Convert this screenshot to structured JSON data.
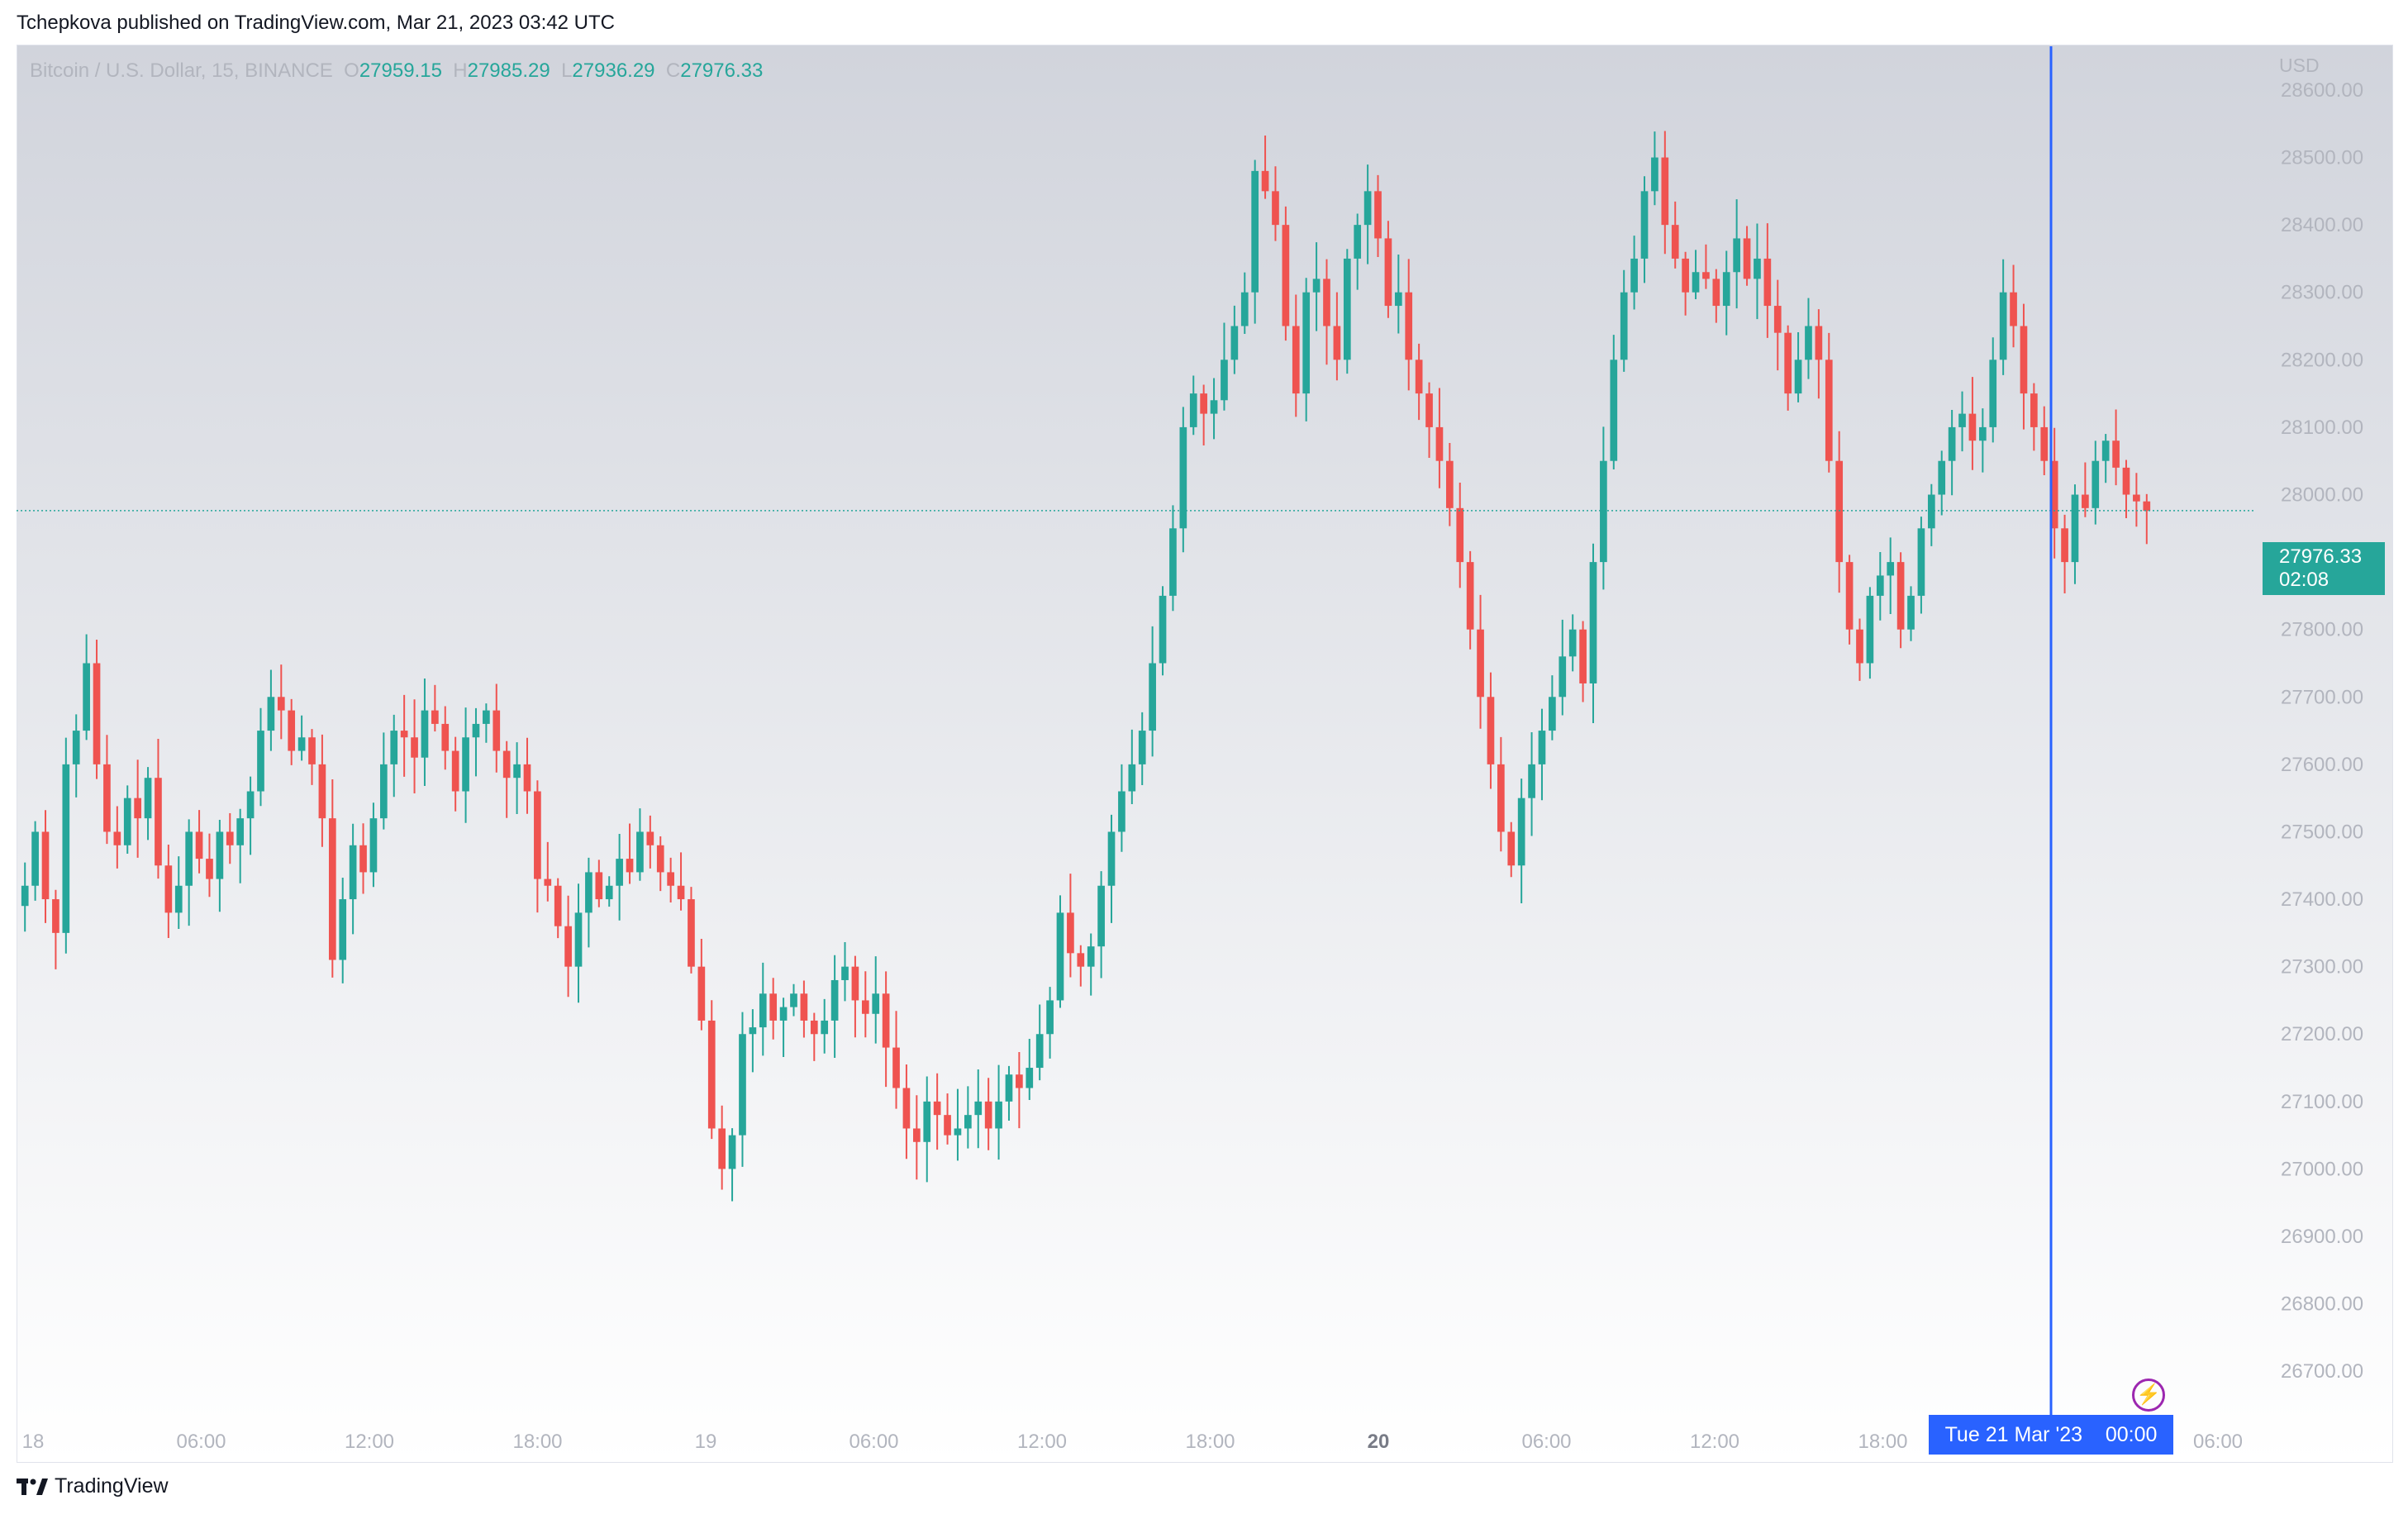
{
  "header": {
    "published_text": "Tchepkova published on TradingView.com, Mar 21, 2023 03:42 UTC"
  },
  "legend": {
    "symbol": "Bitcoin / U.S. Dollar, 15, BINANCE",
    "o_label": "O",
    "o_value": "27959.15",
    "h_label": "H",
    "h_value": "27985.29",
    "l_label": "L",
    "l_value": "27936.29",
    "c_label": "C",
    "c_value": "27976.33"
  },
  "axis": {
    "currency": "USD"
  },
  "last_price": {
    "price": "27976.33",
    "countdown": "02:08"
  },
  "crosshair": {
    "date_label": "Tue 21 Mar '23",
    "time_label": "00:00"
  },
  "footer": {
    "brand": "TradingView"
  },
  "colors": {
    "up": "#26a69a",
    "down": "#ef5350",
    "crosshair": "#2962ff",
    "last_price": "#26a69a"
  },
  "chart_data": {
    "type": "candlestick",
    "interval": "15",
    "ylim": [
      26650,
      28660
    ],
    "y_ticks": [
      "26700.00",
      "26800.00",
      "26900.00",
      "27000.00",
      "27100.00",
      "27200.00",
      "27300.00",
      "27400.00",
      "27500.00",
      "27600.00",
      "27700.00",
      "27800.00",
      "27900.00",
      "28000.00",
      "28100.00",
      "28200.00",
      "28300.00",
      "28400.00",
      "28500.00",
      "28600.00"
    ],
    "x_ticks": [
      "18",
      "06:00",
      "12:00",
      "18:00",
      "19",
      "06:00",
      "12:00",
      "18:00",
      "20",
      "06:00",
      "12:00",
      "18:00",
      "06:00"
    ],
    "closes": [
      27420,
      27500,
      27400,
      27350,
      27600,
      27650,
      27750,
      27600,
      27500,
      27480,
      27550,
      27520,
      27580,
      27450,
      27380,
      27420,
      27500,
      27460,
      27430,
      27500,
      27480,
      27520,
      27560,
      27650,
      27700,
      27680,
      27620,
      27640,
      27600,
      27520,
      27310,
      27400,
      27480,
      27440,
      27520,
      27600,
      27650,
      27640,
      27610,
      27680,
      27660,
      27620,
      27560,
      27640,
      27660,
      27680,
      27620,
      27580,
      27600,
      27560,
      27430,
      27420,
      27360,
      27300,
      27380,
      27440,
      27400,
      27420,
      27460,
      27440,
      27500,
      27480,
      27440,
      27420,
      27400,
      27300,
      27220,
      27060,
      27000,
      27050,
      27200,
      27210,
      27260,
      27220,
      27240,
      27260,
      27220,
      27200,
      27220,
      27280,
      27300,
      27250,
      27230,
      27260,
      27180,
      27120,
      27060,
      27040,
      27100,
      27080,
      27050,
      27060,
      27080,
      27100,
      27060,
      27100,
      27140,
      27120,
      27150,
      27200,
      27250,
      27380,
      27320,
      27300,
      27330,
      27420,
      27500,
      27560,
      27600,
      27650,
      27750,
      27850,
      27950,
      28100,
      28150,
      28120,
      28140,
      28200,
      28250,
      28300,
      28480,
      28450,
      28400,
      28250,
      28150,
      28300,
      28320,
      28250,
      28200,
      28350,
      28400,
      28450,
      28380,
      28280,
      28300,
      28200,
      28150,
      28100,
      28050,
      27980,
      27900,
      27800,
      27700,
      27600,
      27500,
      27450,
      27550,
      27600,
      27650,
      27700,
      27760,
      27800,
      27720,
      27900,
      28050,
      28200,
      28300,
      28350,
      28450,
      28500,
      28400,
      28350,
      28300,
      28330,
      28320,
      28280,
      28330,
      28380,
      28320,
      28350,
      28280,
      28240,
      28150,
      28200,
      28250,
      28200,
      28050,
      27900,
      27800,
      27750,
      27850,
      27880,
      27900,
      27800,
      27850,
      27950,
      28000,
      28050,
      28100,
      28120,
      28080,
      28100,
      28200,
      28300,
      28250,
      28150,
      28100,
      28050,
      27950,
      27900,
      28000,
      27980,
      28050,
      28080,
      28040,
      28000,
      27990,
      27976
    ]
  }
}
